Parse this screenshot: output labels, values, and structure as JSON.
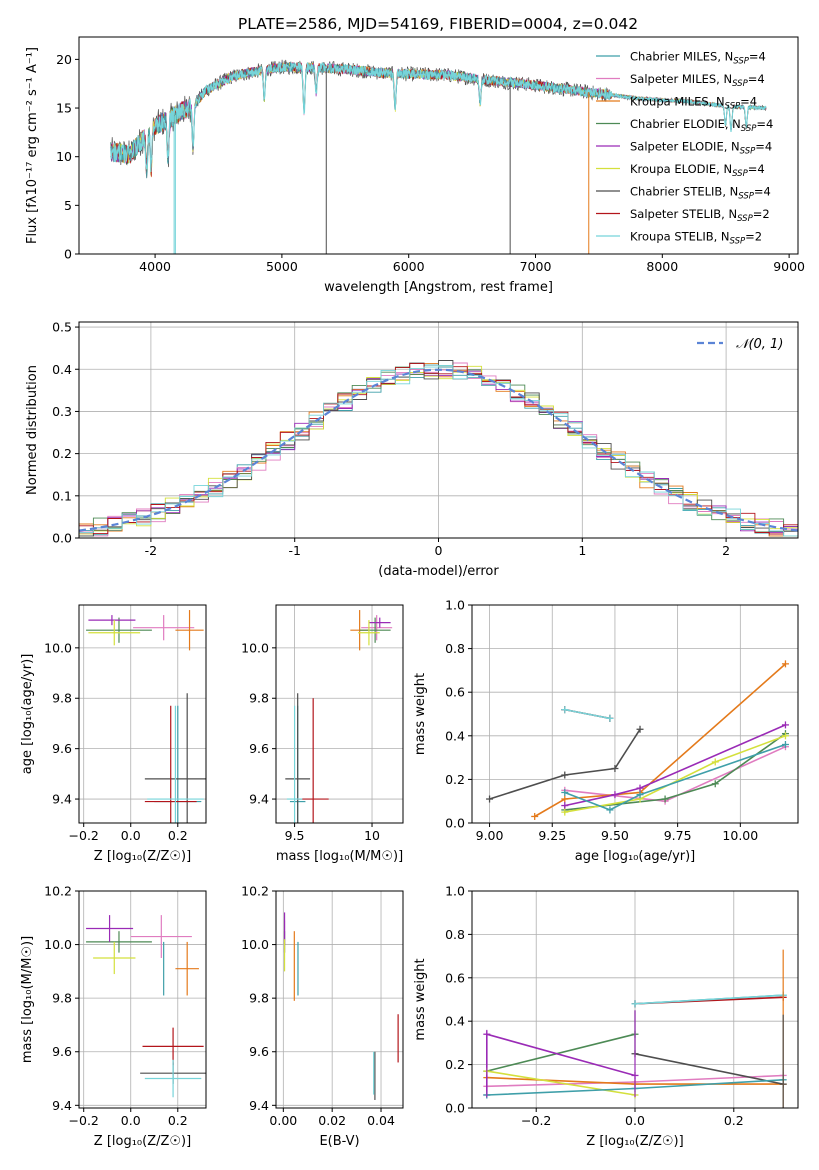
{
  "figure": {
    "title": "PLATE=2586, MJD=54169, FIBERID=0004, z=0.042"
  },
  "colors": {
    "axis": "#000000",
    "grid": "#b0b0b0",
    "gauss": "#5b84d6"
  },
  "series": [
    {
      "name": "Chabrier MILES",
      "nssp": "4",
      "color": "#3f9fa9"
    },
    {
      "name": "Salpeter MILES",
      "nssp": "4",
      "color": "#e07cc0"
    },
    {
      "name": "Kroupa MILES",
      "nssp": "4",
      "color": "#e47a1b"
    },
    {
      "name": "Chabrier ELODIE",
      "nssp": "4",
      "color": "#4d8a55"
    },
    {
      "name": "Salpeter ELODIE",
      "nssp": "4",
      "color": "#9a2bb6"
    },
    {
      "name": "Kroupa ELODIE",
      "nssp": "4",
      "color": "#d4e03c"
    },
    {
      "name": "Chabrier STELIB",
      "nssp": "4",
      "color": "#4e4e4e"
    },
    {
      "name": "Salpeter STELIB",
      "nssp": "2",
      "color": "#b3151b"
    },
    {
      "name": "Kroupa STELIB",
      "nssp": "2",
      "color": "#76d4d9"
    }
  ],
  "chart_data": [
    {
      "id": "spectrum",
      "type": "line",
      "xlabel": "wavelength [Angstrom, rest frame]",
      "ylabel": "Flux [fλ10⁻¹⁷ erg cm⁻² s⁻¹ A⁻¹]",
      "xlim": [
        3400,
        9070
      ],
      "ylim": [
        0,
        22.3
      ],
      "xticks": [
        4000,
        5000,
        6000,
        7000,
        8000,
        9000
      ],
      "yticks": [
        0,
        5,
        10,
        15,
        20
      ],
      "grid": false,
      "legend": "right",
      "x_range": [
        3650,
        8820
      ],
      "profile": [
        [
          3650,
          10.5
        ],
        [
          3800,
          10.2
        ],
        [
          3900,
          11.8
        ],
        [
          4000,
          13.2
        ],
        [
          4100,
          13.8
        ],
        [
          4200,
          14.6
        ],
        [
          4300,
          15.2
        ],
        [
          4400,
          16.8
        ],
        [
          4600,
          18.2
        ],
        [
          4800,
          18.8
        ],
        [
          5000,
          19.2
        ],
        [
          5200,
          19.2
        ],
        [
          5500,
          19.0
        ],
        [
          5800,
          18.6
        ],
        [
          6000,
          18.5
        ],
        [
          6300,
          18.4
        ],
        [
          6600,
          17.9
        ],
        [
          6900,
          17.5
        ],
        [
          7200,
          17.0
        ],
        [
          7500,
          16.5
        ],
        [
          7800,
          16.0
        ],
        [
          8000,
          15.8
        ],
        [
          8200,
          15.7
        ],
        [
          8500,
          15.2
        ],
        [
          8820,
          15.0
        ]
      ],
      "absorption_lines": [
        [
          3934,
          3.5
        ],
        [
          3969,
          4.0
        ],
        [
          4102,
          4.0
        ],
        [
          4300,
          4.0
        ],
        [
          4861,
          3.0
        ],
        [
          5175,
          4.5
        ],
        [
          5270,
          2.5
        ],
        [
          5893,
          3.5
        ],
        [
          6563,
          2.5
        ],
        [
          8498,
          2.0
        ],
        [
          8542,
          2.5
        ],
        [
          8662,
          2.0
        ]
      ]
    },
    {
      "id": "residuals",
      "type": "histogram",
      "xlabel": "(data-model)/error",
      "ylabel": "Normed distribution",
      "xlim": [
        -2.5,
        2.5
      ],
      "ylim": [
        0,
        0.512
      ],
      "xticks": [
        -2,
        -1,
        0,
        1,
        2
      ],
      "yticks": [
        0.0,
        0.1,
        0.2,
        0.3,
        0.4,
        0.5
      ],
      "grid": true,
      "legend": "top-right",
      "gauss_label": "𝒩(0, 1)",
      "bins": 50,
      "bin_width": 0.1
    },
    {
      "id": "age-vs-z",
      "type": "errorbar",
      "xlabel": "Z [log₁₀(Z/Z☉)]",
      "ylabel": "age  [log₁₀(age/yr)]",
      "xlim": [
        -0.22,
        0.32
      ],
      "ylim": [
        9.305,
        10.17
      ],
      "xticks": [
        -0.2,
        0.0,
        0.2
      ],
      "xticklabels": [
        "−0.2",
        "0.0",
        "0.2"
      ],
      "yticks": [
        9.4,
        9.6,
        9.8,
        10.0
      ],
      "grid": true,
      "points": [
        {
          "s": 0,
          "x": 0.2,
          "y": 9.39,
          "xe": 0.1,
          "ye": 0.38
        },
        {
          "s": 1,
          "x": 0.14,
          "y": 10.08,
          "xe": 0.13,
          "ye": 0.05
        },
        {
          "s": 2,
          "x": 0.25,
          "y": 10.07,
          "xe": 0.06,
          "ye": 0.08
        },
        {
          "s": 3,
          "x": -0.05,
          "y": 10.07,
          "xe": 0.14,
          "ye": 0.05
        },
        {
          "s": 4,
          "x": -0.08,
          "y": 10.11,
          "xe": 0.1,
          "ye": 0.02
        },
        {
          "s": 5,
          "x": -0.07,
          "y": 10.06,
          "xe": 0.11,
          "ye": 0.05
        },
        {
          "s": 6,
          "x": 0.24,
          "y": 9.48,
          "xe": 0.18,
          "ye": 0.34
        },
        {
          "s": 7,
          "x": 0.17,
          "y": 9.39,
          "xe": 0.11,
          "ye": 0.38
        },
        {
          "s": 8,
          "x": 0.19,
          "y": 9.4,
          "xe": 0.12,
          "ye": 0.37
        }
      ]
    },
    {
      "id": "age-vs-mass",
      "type": "errorbar",
      "xlabel": "mass [log₁₀(M/M☉)]",
      "ylabel": "",
      "xlim": [
        9.38,
        10.2
      ],
      "ylim": [
        9.305,
        10.17
      ],
      "xticks": [
        9.5,
        10.0
      ],
      "yticks": [
        9.4,
        9.6,
        9.8,
        10.0
      ],
      "grid": true,
      "points": [
        {
          "s": 0,
          "x": 9.52,
          "y": 9.39,
          "xe": 0.05,
          "ye": 0.38
        },
        {
          "s": 1,
          "x": 10.03,
          "y": 10.08,
          "xe": 0.1,
          "ye": 0.05
        },
        {
          "s": 2,
          "x": 9.92,
          "y": 10.07,
          "xe": 0.06,
          "ye": 0.08
        },
        {
          "s": 3,
          "x": 10.02,
          "y": 10.07,
          "xe": 0.1,
          "ye": 0.05
        },
        {
          "s": 4,
          "x": 10.05,
          "y": 10.1,
          "xe": 0.07,
          "ye": 0.02
        },
        {
          "s": 5,
          "x": 9.98,
          "y": 10.06,
          "xe": 0.07,
          "ye": 0.05
        },
        {
          "s": 6,
          "x": 9.52,
          "y": 9.48,
          "xe": 0.08,
          "ye": 0.34
        },
        {
          "s": 7,
          "x": 9.62,
          "y": 9.4,
          "xe": 0.1,
          "ye": 0.4
        },
        {
          "s": 8,
          "x": 9.5,
          "y": 9.4,
          "xe": 0.05,
          "ye": 0.37
        }
      ]
    },
    {
      "id": "mass-weight-vs-age",
      "type": "line",
      "xlabel": "age  [log₁₀(age/yr)]",
      "ylabel": "mass weight",
      "xlim": [
        8.93,
        10.23
      ],
      "ylim": [
        0,
        1
      ],
      "xticks": [
        9.0,
        9.25,
        9.5,
        9.75,
        10.0
      ],
      "xticklabels": [
        "9.00",
        "9.25",
        "9.50",
        "9.75",
        "10.00"
      ],
      "yticks": [
        0.0,
        0.2,
        0.4,
        0.6,
        0.8,
        1.0
      ],
      "grid": true,
      "lines": [
        {
          "s": 0,
          "x": [
            9.3,
            9.48
          ],
          "y": [
            0.52,
            0.48
          ]
        },
        {
          "s": 1,
          "x": [
            9.3,
            9.7,
            10.18
          ],
          "y": [
            0.15,
            0.1,
            0.35
          ]
        },
        {
          "s": 2,
          "x": [
            9.18,
            9.3,
            9.6,
            10.18
          ],
          "y": [
            0.03,
            0.11,
            0.14,
            0.73
          ]
        },
        {
          "s": 3,
          "x": [
            9.3,
            9.7,
            9.9,
            10.18
          ],
          "y": [
            0.06,
            0.11,
            0.18,
            0.41
          ]
        },
        {
          "s": 4,
          "x": [
            9.3,
            9.5,
            9.6,
            10.18
          ],
          "y": [
            0.08,
            0.13,
            0.16,
            0.45
          ]
        },
        {
          "s": 5,
          "x": [
            9.3,
            9.6,
            9.9,
            10.18
          ],
          "y": [
            0.05,
            0.11,
            0.28,
            0.4
          ]
        },
        {
          "s": 6,
          "x": [
            9.0,
            9.3,
            9.5,
            9.6
          ],
          "y": [
            0.11,
            0.22,
            0.25,
            0.43
          ]
        },
        {
          "s": 7,
          "x": [
            9.3,
            9.48
          ],
          "y": [
            0.52,
            0.48
          ]
        },
        {
          "s": 8,
          "x": [
            9.3,
            9.48
          ],
          "y": [
            0.52,
            0.48
          ]
        },
        {
          "s": 0,
          "x": [
            9.3,
            9.48,
            9.6,
            10.18
          ],
          "y": [
            0.14,
            0.06,
            0.13,
            0.36
          ]
        }
      ]
    },
    {
      "id": "mass-vs-z",
      "type": "errorbar",
      "xlabel": "Z [log₁₀(Z/Z☉)]",
      "ylabel": "mass [log₁₀(M/M☉)]",
      "xlim": [
        -0.22,
        0.32
      ],
      "ylim": [
        9.39,
        10.2
      ],
      "xticks": [
        -0.2,
        0.0,
        0.2
      ],
      "xticklabels": [
        "−0.2",
        "0.0",
        "0.2"
      ],
      "yticks": [
        9.4,
        9.6,
        9.8,
        10.0,
        10.2
      ],
      "grid": true,
      "points": [
        {
          "s": 0,
          "x": 0.14,
          "y": 9.91,
          "xe": 0.0,
          "ye": 0.1
        },
        {
          "s": 1,
          "x": 0.13,
          "y": 10.03,
          "xe": 0.13,
          "ye": 0.08
        },
        {
          "s": 2,
          "x": 0.24,
          "y": 9.91,
          "xe": 0.05,
          "ye": 0.1
        },
        {
          "s": 3,
          "x": -0.05,
          "y": 10.01,
          "xe": 0.14,
          "ye": 0.04
        },
        {
          "s": 4,
          "x": -0.09,
          "y": 10.06,
          "xe": 0.1,
          "ye": 0.05
        },
        {
          "s": 5,
          "x": -0.07,
          "y": 9.95,
          "xe": 0.09,
          "ye": 0.06
        },
        {
          "s": 6,
          "x": 0.18,
          "y": 9.52,
          "xe": 0.14,
          "ye": 0.04
        },
        {
          "s": 7,
          "x": 0.18,
          "y": 9.62,
          "xe": 0.13,
          "ye": 0.07
        },
        {
          "s": 8,
          "x": 0.18,
          "y": 9.5,
          "xe": 0.12,
          "ye": 0.07
        }
      ]
    },
    {
      "id": "mass-vs-ebv",
      "type": "errorbar",
      "xlabel": "E(B-V)",
      "ylabel": "",
      "xlim": [
        -0.003,
        0.049
      ],
      "ylim": [
        9.39,
        10.2
      ],
      "xticks": [
        0.0,
        0.02,
        0.04
      ],
      "xticklabels": [
        "0.00",
        "0.02",
        "0.04"
      ],
      "yticks": [
        9.4,
        9.6,
        9.8,
        10.0,
        10.2
      ],
      "grid": true,
      "points": [
        {
          "s": 0,
          "x": 0.006,
          "y": 9.91,
          "xe": 0,
          "ye": 0.1
        },
        {
          "s": 1,
          "x": 0.0005,
          "y": 10.03,
          "xe": 0,
          "ye": 0.06
        },
        {
          "s": 2,
          "x": 0.0045,
          "y": 9.92,
          "xe": 0,
          "ye": 0.13
        },
        {
          "s": 3,
          "x": 0.0005,
          "y": 10.01,
          "xe": 0,
          "ye": 0.04
        },
        {
          "s": 4,
          "x": 0.0005,
          "y": 10.06,
          "xe": 0,
          "ye": 0.06
        },
        {
          "s": 5,
          "x": 0.0005,
          "y": 9.96,
          "xe": 0,
          "ye": 0.06
        },
        {
          "s": 6,
          "x": 0.0375,
          "y": 9.51,
          "xe": 0,
          "ye": 0.09
        },
        {
          "s": 7,
          "x": 0.047,
          "y": 9.65,
          "xe": 0,
          "ye": 0.09
        },
        {
          "s": 8,
          "x": 0.037,
          "y": 9.52,
          "xe": 0,
          "ye": 0.08
        }
      ]
    },
    {
      "id": "mass-weight-vs-z",
      "type": "line",
      "xlabel": "Z [log₁₀(Z/Z☉)]",
      "ylabel": "mass weight",
      "xlim": [
        -0.33,
        0.33
      ],
      "ylim": [
        0,
        1
      ],
      "xticks": [
        -0.2,
        0.0,
        0.2
      ],
      "xticklabels": [
        "−0.2",
        "0.0",
        "0.2"
      ],
      "yticks": [
        0.0,
        0.2,
        0.4,
        0.6,
        0.8,
        1.0
      ],
      "grid": true,
      "lines": [
        {
          "s": 0,
          "x": [
            0.0,
            0.3
          ],
          "y": [
            0.48,
            0.52
          ]
        },
        {
          "s": 1,
          "x": [
            -0.3,
            0.0,
            0.3
          ],
          "y": [
            0.1,
            0.12,
            0.15
          ]
        },
        {
          "s": 2,
          "x": [
            -0.3,
            0.0,
            0.3
          ],
          "y": [
            0.14,
            0.11,
            0.11
          ]
        },
        {
          "s": 3,
          "x": [
            -0.3,
            0.0
          ],
          "y": [
            0.17,
            0.34
          ]
        },
        {
          "s": 4,
          "x": [
            -0.3,
            -0.3,
            0.0
          ],
          "y": [
            0.06,
            0.34,
            0.15
          ]
        },
        {
          "s": 5,
          "x": [
            -0.3,
            0.0
          ],
          "y": [
            0.17,
            0.06
          ]
        },
        {
          "s": 6,
          "x": [
            0.0,
            0.3
          ],
          "y": [
            0.25,
            0.11
          ]
        },
        {
          "s": 7,
          "x": [
            0.0,
            0.3
          ],
          "y": [
            0.48,
            0.51
          ]
        },
        {
          "s": 8,
          "x": [
            0.0,
            0.3
          ],
          "y": [
            0.48,
            0.52
          ]
        },
        {
          "s": 0,
          "x": [
            -0.3,
            0.0,
            0.3
          ],
          "y": [
            0.06,
            0.09,
            0.13
          ]
        }
      ]
    }
  ]
}
